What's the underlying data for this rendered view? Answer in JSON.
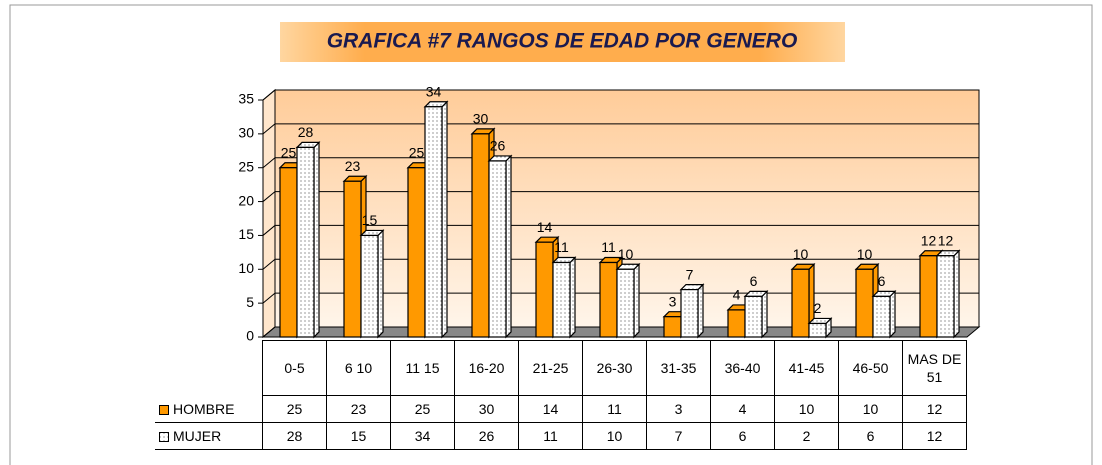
{
  "chart_data": {
    "type": "bar",
    "title": "GRAFICA #7 RANGOS DE EDAD POR GENERO",
    "categories": [
      "0-5",
      "6 10",
      "11 15",
      "16-20",
      "21-25",
      "26-30",
      "31-35",
      "36-40",
      "41-45",
      "46-50",
      "MAS DE 51"
    ],
    "series": [
      {
        "name": "HOMBRE",
        "color": "#ff9900",
        "values": [
          25,
          23,
          25,
          30,
          14,
          11,
          3,
          4,
          10,
          10,
          12
        ]
      },
      {
        "name": "MUJER",
        "color": "#ffffff",
        "values": [
          28,
          15,
          34,
          26,
          11,
          10,
          7,
          6,
          2,
          6,
          12
        ]
      }
    ],
    "ylim": [
      0,
      35
    ],
    "yticks": [
      0,
      5,
      10,
      15,
      20,
      25,
      30,
      35
    ],
    "grid": true
  }
}
